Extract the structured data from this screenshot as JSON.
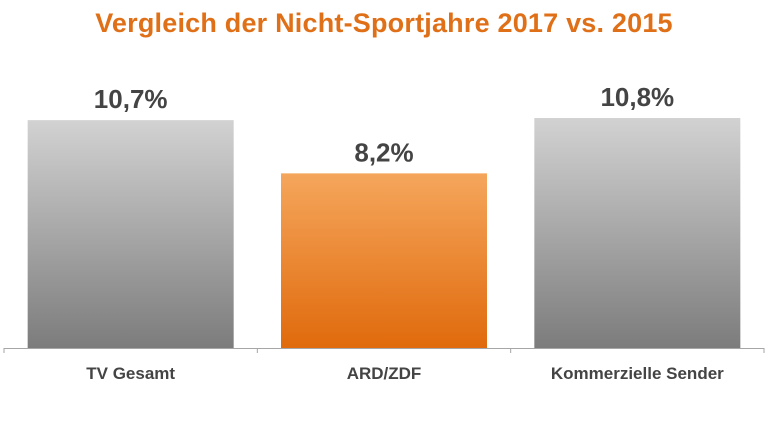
{
  "chart_data": {
    "type": "bar",
    "title": "Vergleich der Nicht-Sportjahre 2017 vs. 2015",
    "categories": [
      "TV Gesamt",
      "ARD/ZDF",
      "Kommerzielle Sender"
    ],
    "values": [
      10.7,
      8.2,
      10.8
    ],
    "value_labels": [
      "10,7%",
      "8,2%",
      "10,8%"
    ],
    "xlabel": "",
    "ylabel": "",
    "ylim": [
      0,
      10.8
    ],
    "grid": false,
    "legend": "none",
    "colors": {
      "title": "#e07018",
      "bar_default_top": "#d2d2d2",
      "bar_default_bottom": "#7c7c7c",
      "bar_highlight_top": "#f5a65c",
      "bar_highlight_bottom": "#e06a0c",
      "label": "#444444",
      "axis": "#a6a6a6"
    },
    "highlight_index": 1
  }
}
